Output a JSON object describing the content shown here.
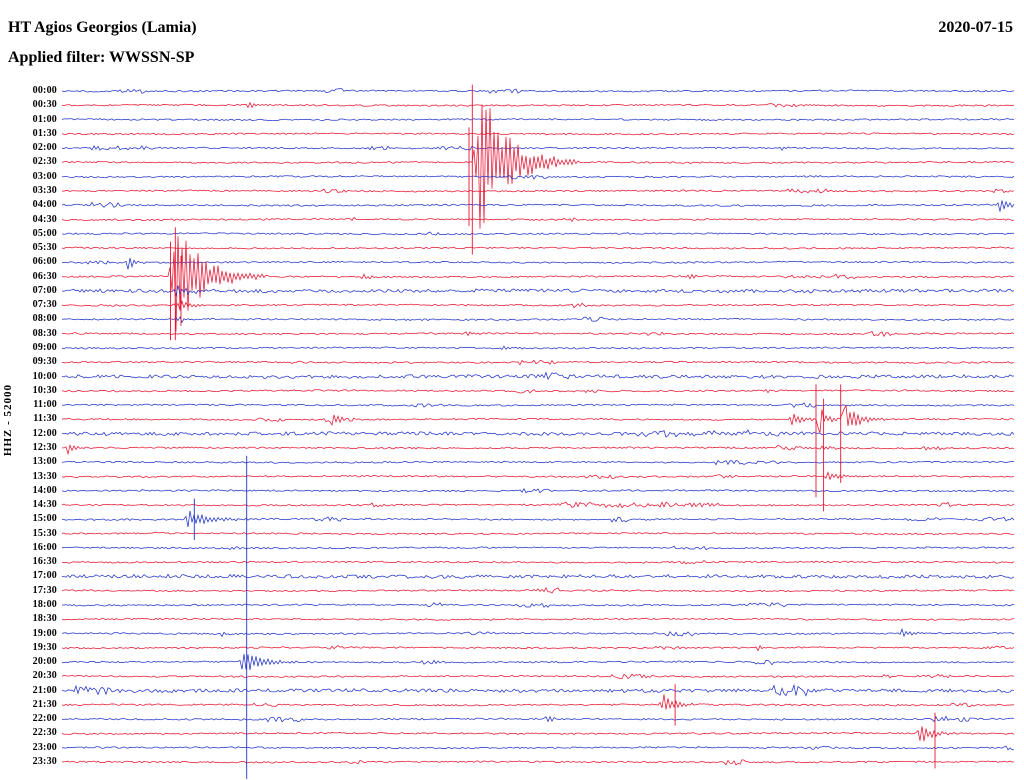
{
  "chart_data": {
    "type": "helicorder",
    "station_title": "HT Agios Georgios (Lamia)",
    "date": "2020-07-15",
    "filter_label": "Applied filter: WWSSN-SP",
    "channel_label": "HHZ - 52000",
    "minutes_per_row": 30,
    "row_color_pattern": [
      "blue",
      "red"
    ],
    "palette": {
      "red": "#e8132f",
      "blue": "#2133c9"
    },
    "time_labels": [
      "00:00",
      "00:30",
      "01:00",
      "01:30",
      "02:00",
      "02:30",
      "03:00",
      "03:30",
      "04:00",
      "04:30",
      "05:00",
      "05:30",
      "06:00",
      "06:30",
      "07:00",
      "07:30",
      "08:00",
      "08:30",
      "09:00",
      "09:30",
      "10:00",
      "10:30",
      "11:00",
      "11:30",
      "12:00",
      "12:30",
      "13:00",
      "13:30",
      "14:00",
      "14:30",
      "15:00",
      "15:30",
      "16:00",
      "16:30",
      "17:00",
      "17:30",
      "18:00",
      "18:30",
      "19:00",
      "19:30",
      "20:00",
      "20:30",
      "21:00",
      "21:30",
      "22:00",
      "22:30",
      "23:00",
      "23:30"
    ],
    "thick_rows": [
      "07:00",
      "10:00",
      "12:00",
      "17:00",
      "21:00"
    ],
    "events": [
      {
        "row": "00:30",
        "x": 0.192,
        "amp": 4,
        "width": 14
      },
      {
        "row": "02:00",
        "x": 0.754,
        "amp": 2.5,
        "width": 8
      },
      {
        "row": "02:30",
        "x": 0.431,
        "amp": 78,
        "width": 40,
        "tail": 28
      },
      {
        "row": "04:00",
        "x": 0.982,
        "amp": 8,
        "width": 16,
        "tail": 10
      },
      {
        "row": "04:30",
        "x": 0.302,
        "amp": 2.5,
        "width": 8
      },
      {
        "row": "06:00",
        "x": 0.066,
        "amp": 8,
        "width": 10,
        "tail": 6
      },
      {
        "row": "06:30",
        "x": 0.112,
        "amp": 58,
        "width": 34,
        "tail": 26
      },
      {
        "row": "06:30",
        "x": 0.313,
        "amp": 3.5,
        "width": 12
      },
      {
        "row": "06:30",
        "x": 0.654,
        "amp": 4,
        "width": 10
      },
      {
        "row": "07:00",
        "x": 0.116,
        "amp": 6,
        "width": 26,
        "tail": 16
      },
      {
        "row": "07:30",
        "x": 0.116,
        "amp": 5,
        "width": 22,
        "tail": 14
      },
      {
        "row": "08:00",
        "x": 0.118,
        "amp": 4,
        "width": 18,
        "tail": 10
      },
      {
        "row": "08:30",
        "x": 0.423,
        "amp": 3,
        "width": 10
      },
      {
        "row": "09:00",
        "x": 0.458,
        "amp": 4,
        "width": 20,
        "tail": 8
      },
      {
        "row": "09:30",
        "x": 0.478,
        "amp": 3,
        "width": 8
      },
      {
        "row": "10:30",
        "x": 0.738,
        "amp": 3,
        "width": 8
      },
      {
        "row": "11:30",
        "x": 0.281,
        "amp": 5,
        "width": 20,
        "tail": 8
      },
      {
        "row": "11:30",
        "x": 0.764,
        "amp": 11,
        "width": 16,
        "tail": 8
      },
      {
        "row": "11:30",
        "x": 0.792,
        "amp": 15,
        "width": 14,
        "tail": 8
      },
      {
        "row": "11:30",
        "x": 0.817,
        "amp": 20,
        "width": 20,
        "tail": 12
      },
      {
        "row": "12:00",
        "x": 0.6,
        "amp": 2.2,
        "width": 150,
        "flat": true
      },
      {
        "row": "12:30",
        "x": 0.003,
        "amp": 6,
        "width": 14,
        "tail": 8
      },
      {
        "row": "12:30",
        "x": 0.795,
        "amp": 4,
        "width": 14
      },
      {
        "row": "13:30",
        "x": 0.8,
        "amp": 5,
        "width": 16
      },
      {
        "row": "14:30",
        "x": 0.324,
        "amp": 3,
        "width": 10
      },
      {
        "row": "14:30",
        "x": 0.52,
        "amp": 2.6,
        "width": 165,
        "flat": true
      },
      {
        "row": "15:00",
        "x": 0.128,
        "amp": 10,
        "width": 26,
        "tail": 18
      },
      {
        "row": "19:00",
        "x": 0.164,
        "amp": 3,
        "width": 8
      },
      {
        "row": "19:00",
        "x": 0.879,
        "amp": 6,
        "width": 16,
        "tail": 8
      },
      {
        "row": "19:30",
        "x": 0.728,
        "amp": 3,
        "width": 8
      },
      {
        "row": "20:00",
        "x": 0.186,
        "amp": 14,
        "width": 26,
        "tail": 16
      },
      {
        "row": "20:30",
        "x": 0.607,
        "amp": 3,
        "width": 8
      },
      {
        "row": "21:30",
        "x": 0.627,
        "amp": 11,
        "width": 22,
        "tail": 12
      },
      {
        "row": "22:00",
        "x": 0.507,
        "amp": 4,
        "width": 10
      },
      {
        "row": "22:30",
        "x": 0.898,
        "amp": 13,
        "width": 20,
        "tail": 10
      }
    ],
    "spikes": [
      {
        "x": 0.431,
        "from": "00:00",
        "to": "05:30",
        "color": "red"
      },
      {
        "x": 0.4275,
        "from": "01:30",
        "to": "04:30",
        "color": "red"
      },
      {
        "x": 0.114,
        "from": "05:30",
        "to": "08:30",
        "color": "red"
      },
      {
        "x": 0.119,
        "from": "05:00",
        "to": "08:30",
        "color": "red"
      },
      {
        "x": 0.125,
        "from": "06:00",
        "to": "08:00",
        "color": "red"
      },
      {
        "x": 0.792,
        "from": "10:30",
        "to": "14:00",
        "color": "red"
      },
      {
        "x": 0.8,
        "from": "11:00",
        "to": "14:30",
        "color": "red"
      },
      {
        "x": 0.818,
        "from": "10:30",
        "to": "13:30",
        "color": "red"
      },
      {
        "x": 0.194,
        "from": "13:00",
        "to": "23:30",
        "color": "blue",
        "extend_bottom": true
      },
      {
        "x": 0.139,
        "from": "14:30",
        "to": "15:30",
        "color": "blue"
      },
      {
        "x": 0.917,
        "from": "22:00",
        "to": "23:30",
        "color": "red"
      },
      {
        "x": 0.644,
        "from": "21:00",
        "to": "22:00",
        "color": "red"
      }
    ]
  }
}
